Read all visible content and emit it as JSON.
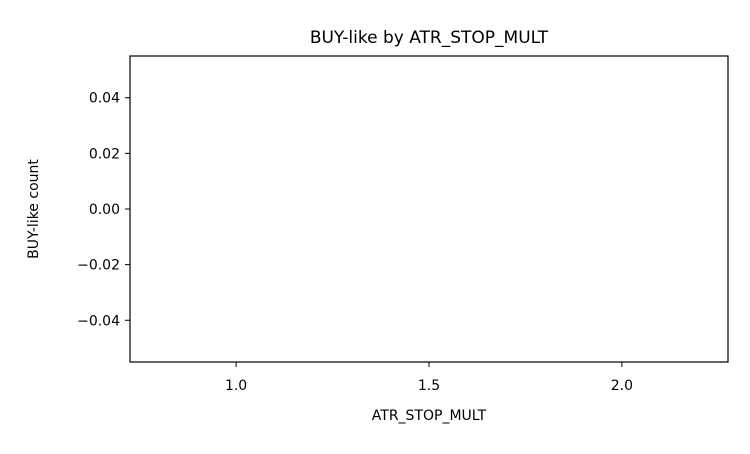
{
  "chart_data": {
    "type": "bar",
    "title": "BUY-like by ATR_STOP_MULT",
    "xlabel": "ATR_STOP_MULT",
    "ylabel": "BUY-like count",
    "x": [],
    "values": [],
    "xlim": [
      0.725,
      2.275
    ],
    "ylim": [
      -0.055,
      0.055
    ],
    "xticks": [
      1.0,
      1.5,
      2.0
    ],
    "xtick_labels": [
      "1.0",
      "1.5",
      "2.0"
    ],
    "yticks": [
      0.04,
      0.02,
      0.0,
      -0.02,
      -0.04
    ],
    "ytick_labels": [
      "0.04",
      "0.02",
      "0.00",
      "−0.02",
      "−0.04"
    ],
    "grid": false,
    "legend": "none"
  }
}
